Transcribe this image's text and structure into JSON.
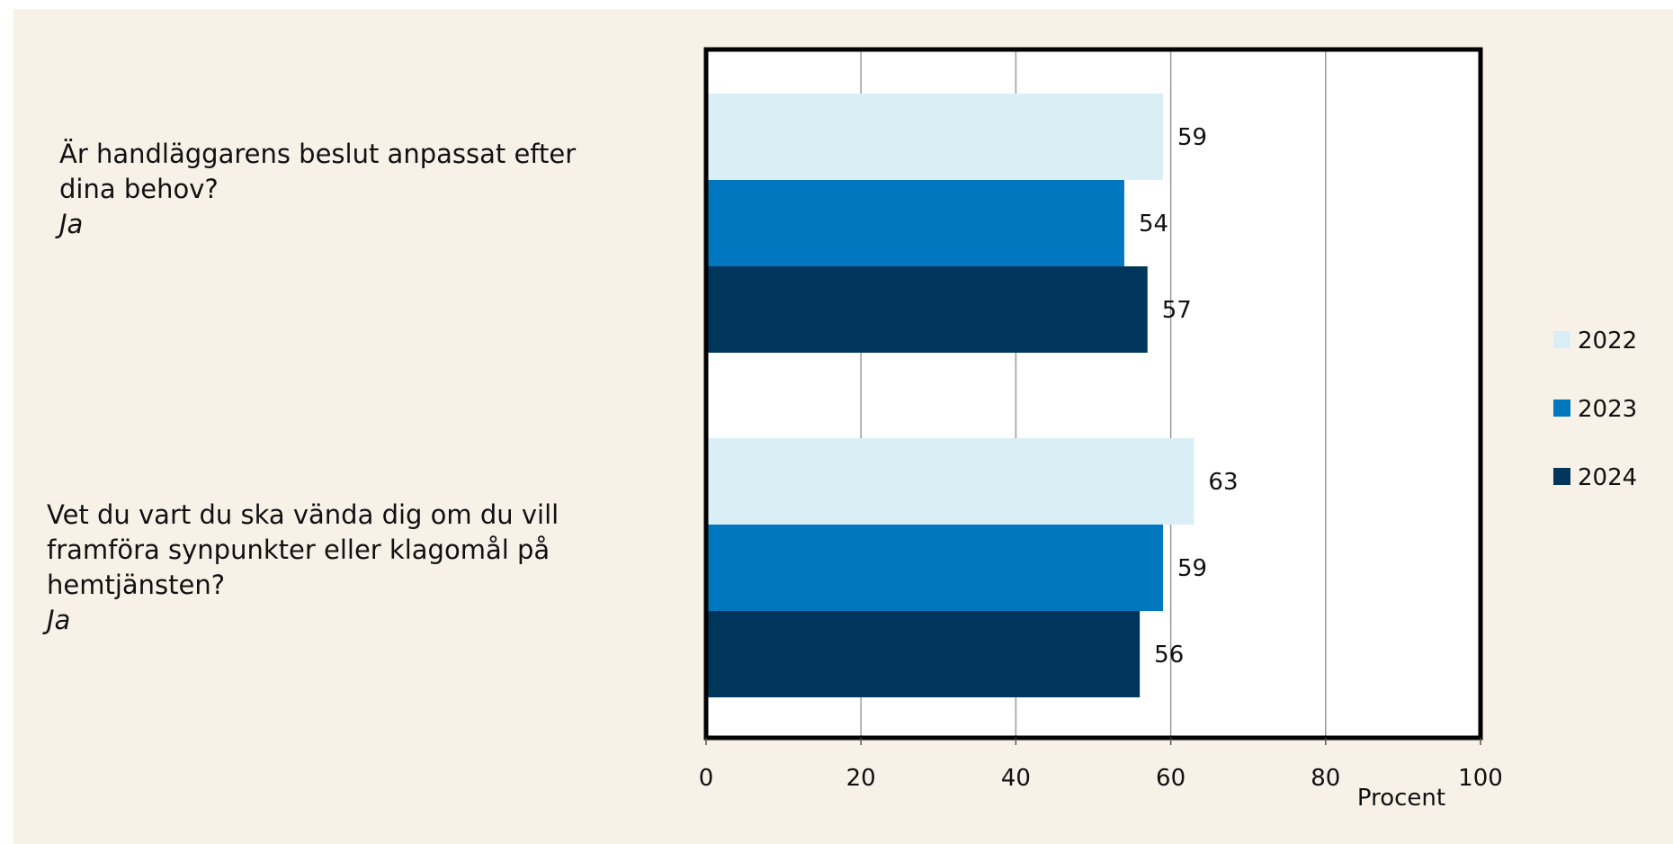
{
  "chart_data": {
    "type": "bar",
    "orientation": "horizontal",
    "categories": [
      {
        "question": "Är handläggarens beslut anpassat efter dina behov?",
        "answer": "Ja"
      },
      {
        "question": "Vet du vart du ska vända dig om du vill framföra synpunkter eller klagomål på hemtjänsten?",
        "answer": "Ja"
      }
    ],
    "series": [
      {
        "name": "2022",
        "color": "#daeef5",
        "values": [
          59,
          63
        ]
      },
      {
        "name": "2023",
        "color": "#0077bf",
        "values": [
          54,
          59
        ]
      },
      {
        "name": "2024",
        "color": "#00365c",
        "values": [
          57,
          56
        ]
      }
    ],
    "xlabel": "Procent",
    "xlim": [
      0,
      100
    ],
    "xticks": [
      0,
      20,
      40,
      60,
      80,
      100
    ],
    "grid": true,
    "legend_position": "right"
  }
}
